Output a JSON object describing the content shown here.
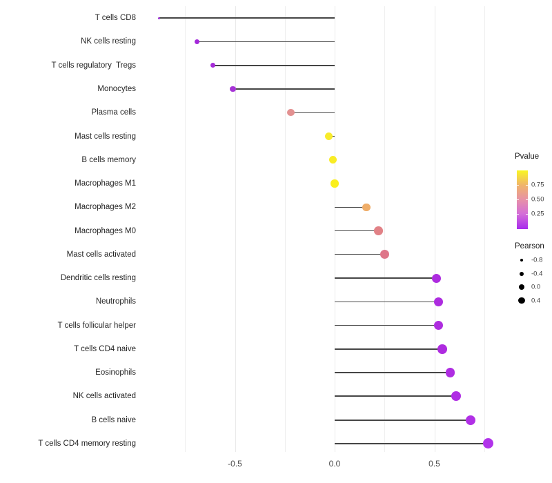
{
  "chart_data": {
    "type": "scatter",
    "subtype": "lollipop",
    "title": "",
    "xlabel": "",
    "ylabel": "",
    "xlim": [
      -0.96,
      0.85
    ],
    "grid": {
      "major_ticks": [
        -0.5,
        0.0,
        0.5
      ],
      "minor_ticks": [
        -0.75,
        -0.25,
        0.25,
        0.75
      ],
      "horizontal_gridlines": false
    },
    "x_ticks": [
      {
        "label": "-0.5",
        "value": -0.5
      },
      {
        "label": "0.0",
        "value": 0.0
      },
      {
        "label": "0.5",
        "value": 0.5
      }
    ],
    "categories": [
      "T cells CD8",
      "NK cells resting",
      "T cells regulatory  Tregs",
      "Monocytes",
      "Plasma cells",
      "Mast cells resting",
      "B cells memory",
      "Macrophages M1",
      "Macrophages M2",
      "Macrophages M0",
      "Mast cells activated",
      "Dendritic cells resting",
      "Neutrophils",
      "T cells follicular helper",
      "T cells CD4 naive",
      "Eosinophils",
      "NK cells activated",
      "B cells naive",
      "T cells CD4 memory resting"
    ],
    "points": [
      {
        "label": "T cells CD8",
        "pearson": -0.88,
        "color": "#9A31D2",
        "diameter": 3
      },
      {
        "label": "NK cells resting",
        "pearson": -0.69,
        "color": "#A428DA",
        "diameter": 7
      },
      {
        "label": "T cells regulatory  Tregs",
        "pearson": -0.61,
        "color": "#A52BD8",
        "diameter": 7.5
      },
      {
        "label": "Monocytes",
        "pearson": -0.51,
        "color": "#A633D6",
        "diameter": 8.5
      },
      {
        "label": "Plasma cells",
        "pearson": -0.22,
        "color": "#E39191",
        "diameter": 10.5
      },
      {
        "label": "Mast cells resting",
        "pearson": -0.03,
        "color": "#F8EB2B",
        "diameter": 11.5
      },
      {
        "label": "B cells memory",
        "pearson": -0.01,
        "color": "#F9EC25",
        "diameter": 11
      },
      {
        "label": "Macrophages M1",
        "pearson": 0.0,
        "color": "#FAEF1B",
        "diameter": 11.5
      },
      {
        "label": "Macrophages M2",
        "pearson": 0.16,
        "color": "#EFAD69",
        "diameter": 11.5
      },
      {
        "label": "Macrophages M0",
        "pearson": 0.22,
        "color": "#E18186",
        "diameter": 12.5
      },
      {
        "label": "Mast cells activated",
        "pearson": 0.25,
        "color": "#DE7689",
        "diameter": 13
      },
      {
        "label": "Dendritic cells resting",
        "pearson": 0.51,
        "color": "#AD2BDF",
        "diameter": 13
      },
      {
        "label": "Neutrophils",
        "pearson": 0.52,
        "color": "#AD2CDF",
        "diameter": 13
      },
      {
        "label": "T cells follicular helper",
        "pearson": 0.52,
        "color": "#AE2CDF",
        "diameter": 13
      },
      {
        "label": "T cells CD4 naive",
        "pearson": 0.54,
        "color": "#AE2BE0",
        "diameter": 13.5
      },
      {
        "label": "Eosinophils",
        "pearson": 0.58,
        "color": "#AF2DE2",
        "diameter": 13.5
      },
      {
        "label": "NK cells activated",
        "pearson": 0.61,
        "color": "#B02EE4",
        "diameter": 14
      },
      {
        "label": "B cells naive",
        "pearson": 0.68,
        "color": "#B130E6",
        "diameter": 14
      },
      {
        "label": "T cells CD4 memory resting",
        "pearson": 0.77,
        "color": "#B133EA",
        "diameter": 15
      }
    ],
    "legend_pvalue": {
      "title": "Pvalue",
      "position": "right",
      "gradient_top_to_bottom": [
        "#F9F623",
        "#F0B56A",
        "#E792A6",
        "#D46ED8",
        "#A82BEC"
      ],
      "gradient_stops_pct": [
        0,
        24.7,
        49.4,
        74.1,
        100
      ],
      "tick_labels": [
        {
          "label": "0.75",
          "pct_from_top": 24.7
        },
        {
          "label": "0.50",
          "pct_from_top": 49.4
        },
        {
          "label": "0.25",
          "pct_from_top": 74.1
        }
      ]
    },
    "legend_pearson": {
      "title": "Pearson",
      "position": "right",
      "items": [
        {
          "label": "-0.8",
          "diameter": 4
        },
        {
          "label": "-0.4",
          "diameter": 6
        },
        {
          "label": "0.0",
          "diameter": 8
        },
        {
          "label": "0.4",
          "diameter": 9.5
        }
      ]
    },
    "colors": {
      "stem": "#454545",
      "gridline": "#EFEFEF",
      "axis_text": "#4d4d4d",
      "background": "#ffffff"
    }
  }
}
